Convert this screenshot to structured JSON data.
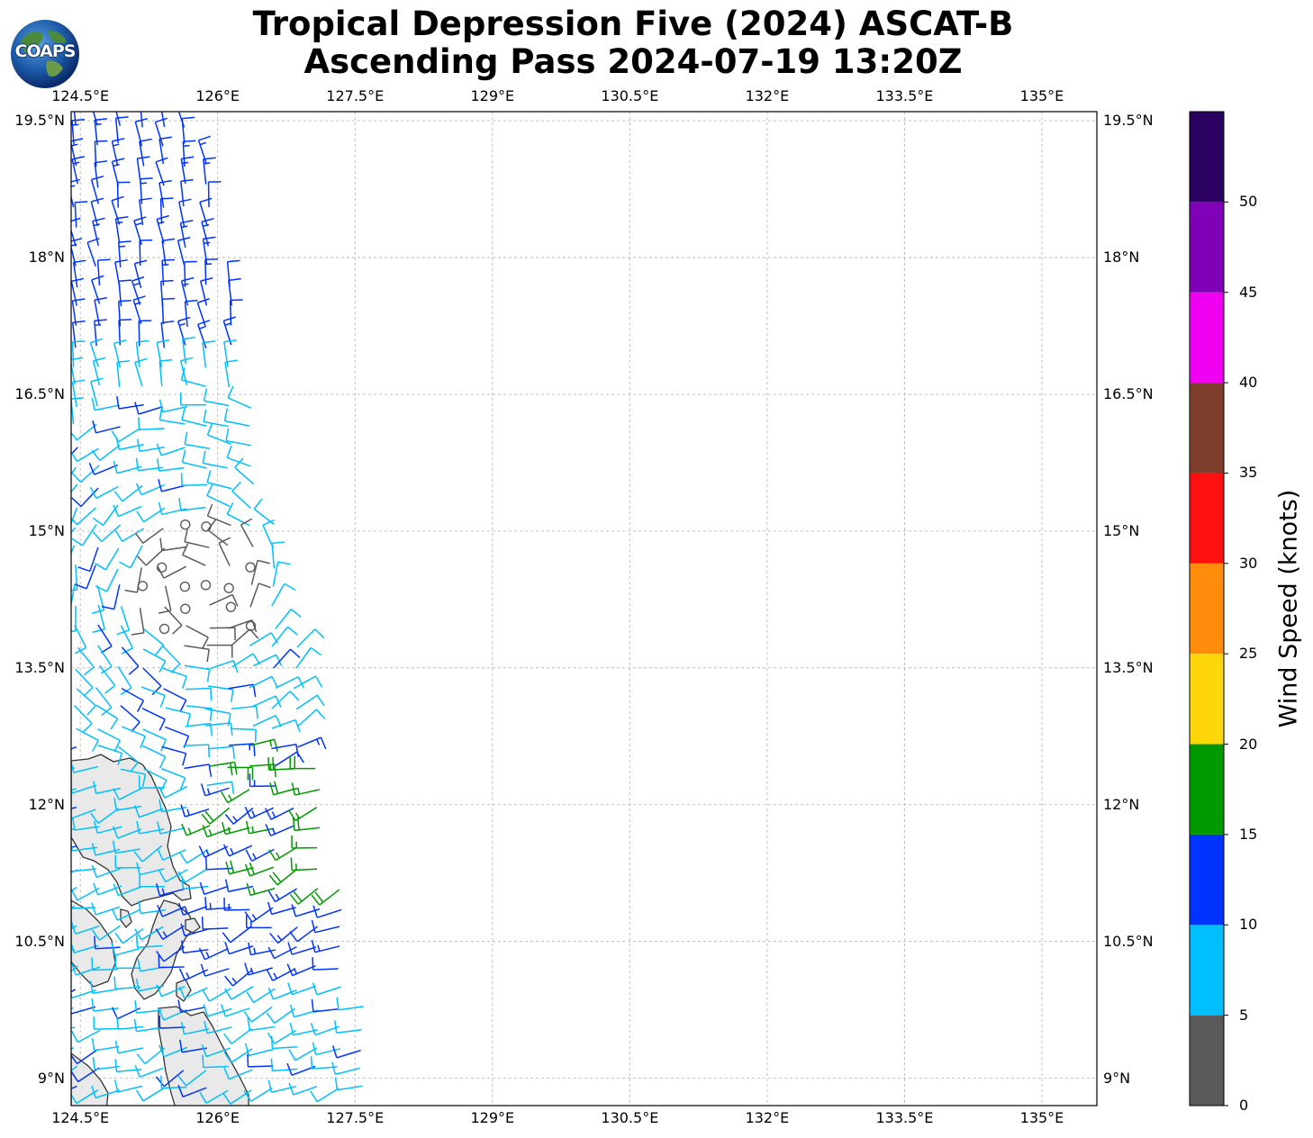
{
  "title": {
    "line1": "Tropical Depression Five (2024) ASCAT-B",
    "line2": "Ascending Pass 2024-07-19 13:20Z"
  },
  "logo": {
    "text": "COAPS",
    "icon": "globe-logo-icon"
  },
  "map": {
    "lon_range": [
      124.4,
      135.6
    ],
    "lat_range": [
      8.7,
      19.6
    ],
    "gridlines": true,
    "lon_ticks": [
      {
        "value": 124.5,
        "label": "124.5°E"
      },
      {
        "value": 126.0,
        "label": "126°E"
      },
      {
        "value": 127.5,
        "label": "127.5°E"
      },
      {
        "value": 129.0,
        "label": "129°E"
      },
      {
        "value": 130.5,
        "label": "130.5°E"
      },
      {
        "value": 132.0,
        "label": "132°E"
      },
      {
        "value": 133.5,
        "label": "133.5°E"
      },
      {
        "value": 135.0,
        "label": "135°E"
      }
    ],
    "lat_ticks": [
      {
        "value": 19.5,
        "label": "19.5°N"
      },
      {
        "value": 18.0,
        "label": "18°N"
      },
      {
        "value": 16.5,
        "label": "16.5°N"
      },
      {
        "value": 15.0,
        "label": "15°N"
      },
      {
        "value": 13.5,
        "label": "13.5°N"
      },
      {
        "value": 12.0,
        "label": "12°N"
      },
      {
        "value": 10.5,
        "label": "10.5°N"
      },
      {
        "value": 9.0,
        "label": "9°N"
      }
    ],
    "swath_note_colors": {
      "calm": "#555555"
    }
  },
  "colorbar": {
    "title": "Wind Speed (knots)",
    "bins": [
      {
        "from": 0,
        "to": 5,
        "color": "#5a5a5a"
      },
      {
        "from": 5,
        "to": 10,
        "color": "#00bfff"
      },
      {
        "from": 10,
        "to": 15,
        "color": "#0033ff"
      },
      {
        "from": 15,
        "to": 20,
        "color": "#009900"
      },
      {
        "from": 20,
        "to": 25,
        "color": "#ffd60a"
      },
      {
        "from": 25,
        "to": 30,
        "color": "#ff8c0a"
      },
      {
        "from": 30,
        "to": 35,
        "color": "#ff1010"
      },
      {
        "from": 35,
        "to": 40,
        "color": "#7e3d2a"
      },
      {
        "from": 40,
        "to": 45,
        "color": "#f000f0"
      },
      {
        "from": 45,
        "to": 50,
        "color": "#8000b8"
      },
      {
        "from": 50,
        "to": 55,
        "color": "#2a0060"
      }
    ],
    "labels": [
      "0",
      "5",
      "10",
      "15",
      "20",
      "25",
      "30",
      "35",
      "40",
      "45",
      "50"
    ]
  }
}
